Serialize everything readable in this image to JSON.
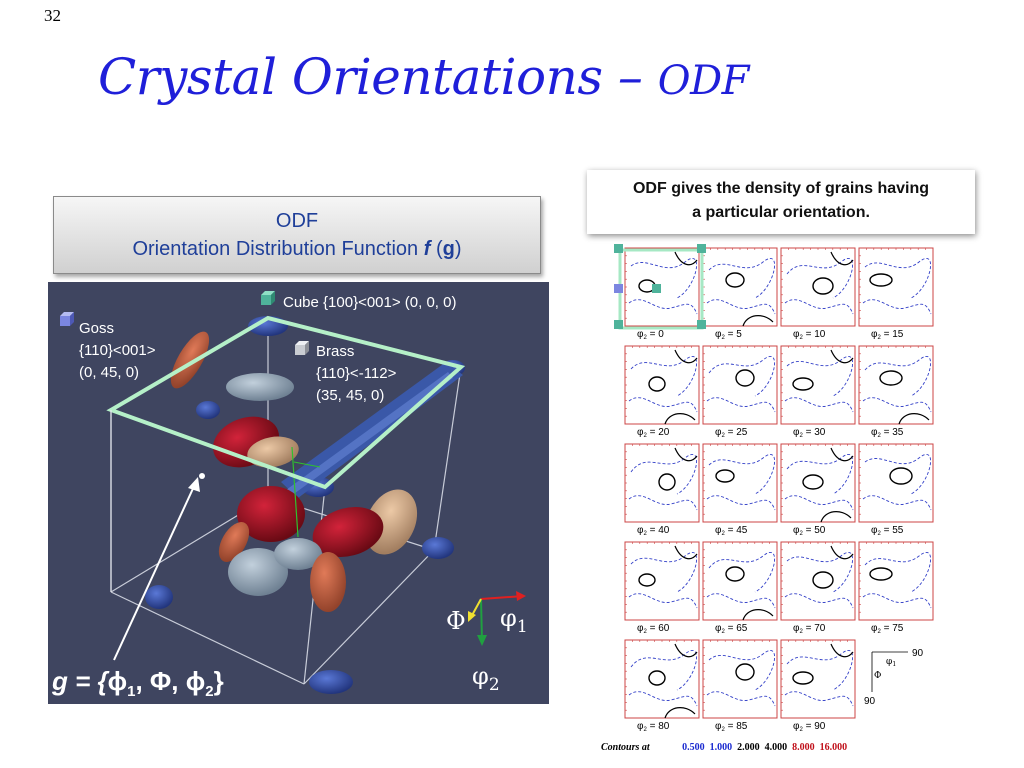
{
  "slide": {
    "number": "32",
    "title_main": "Crystal Orientations –",
    "title_small": "ODF"
  },
  "odf_box": {
    "line1": "ODF",
    "line2_prefix": "Orientation Distribution Function",
    "f": "f",
    "g": "g"
  },
  "callout": {
    "line1": "ODF gives the density of grains having",
    "line2": "a particular orientation."
  },
  "visualization": {
    "cube": "Cube {100}<001> (0, 0, 0)",
    "goss": [
      "Goss",
      "{110}<001>",
      "(0, 45, 0)"
    ],
    "brass": [
      "Brass",
      "{110}<-112>",
      "(35, 45, 0)"
    ],
    "g_function": {
      "prefix": "g = {",
      "phi1": "ϕ",
      "s1": "1",
      "Phi": ", Φ, ",
      "phi2": "ϕ",
      "s2": "2",
      "close": "}"
    },
    "axes": {
      "Phi": "Φ",
      "phi1": "φ",
      "phi1_sub": "1",
      "phi2": "φ",
      "phi2_sub": "2"
    }
  },
  "odf_sections": {
    "label_prefix": "φ",
    "label_sub": "2",
    "angles": [
      "0",
      "5",
      "10",
      "15",
      "20",
      "25",
      "30",
      "35",
      "40",
      "45",
      "50",
      "55",
      "60",
      "65",
      "70",
      "75",
      "80",
      "85",
      "90"
    ]
  },
  "axis_key": {
    "v90a": "90",
    "v90b": "90",
    "phi1": "φ",
    "phi1_sub": "1",
    "Phi": "Φ"
  },
  "contours": {
    "label": "Contours at",
    "levels": [
      {
        "value": "0.500",
        "color": "#1a2ad0"
      },
      {
        "value": "1.000",
        "color": "#1a2ad0"
      },
      {
        "value": "2.000",
        "color": "#000000"
      },
      {
        "value": "4.000",
        "color": "#000000"
      },
      {
        "value": "8.000",
        "color": "#c0101a"
      },
      {
        "value": "16.000",
        "color": "#c0101a"
      }
    ]
  }
}
